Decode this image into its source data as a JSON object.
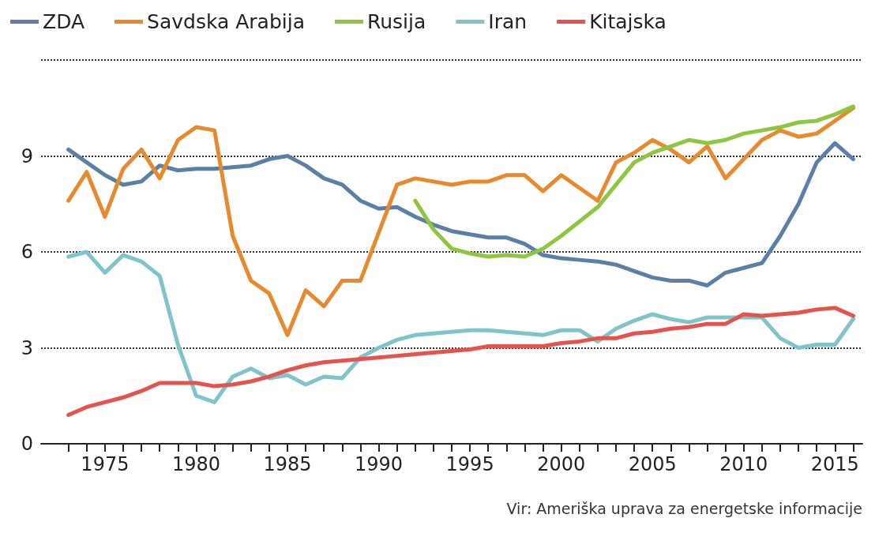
{
  "chart_data": {
    "type": "line",
    "x": [
      1973,
      1974,
      1975,
      1976,
      1977,
      1978,
      1979,
      1980,
      1981,
      1982,
      1983,
      1984,
      1985,
      1986,
      1987,
      1988,
      1989,
      1990,
      1991,
      1992,
      1993,
      1994,
      1995,
      1996,
      1997,
      1998,
      1999,
      2000,
      2001,
      2002,
      2003,
      2004,
      2005,
      2006,
      2007,
      2008,
      2009,
      2010,
      2011,
      2012,
      2013,
      2014,
      2015,
      2016
    ],
    "series": [
      {
        "name": "ZDA",
        "color": "#5b7fa6",
        "values": [
          9.2,
          8.8,
          8.4,
          8.1,
          8.2,
          8.7,
          8.55,
          8.6,
          8.6,
          8.65,
          8.7,
          8.9,
          9.0,
          8.7,
          8.3,
          8.1,
          7.6,
          7.35,
          7.4,
          7.1,
          6.85,
          6.65,
          6.55,
          6.45,
          6.45,
          6.25,
          5.9,
          5.8,
          5.75,
          5.7,
          5.6,
          5.4,
          5.2,
          5.1,
          5.1,
          4.95,
          5.35,
          5.5,
          5.65,
          6.5,
          7.5,
          8.8,
          9.4,
          8.9
        ]
      },
      {
        "name": "Savdska Arabija",
        "color": "#e8892b",
        "values": [
          7.6,
          8.5,
          7.1,
          8.6,
          9.2,
          8.3,
          9.5,
          9.9,
          9.8,
          6.5,
          5.1,
          4.7,
          3.4,
          4.8,
          4.3,
          5.1,
          5.1,
          6.6,
          8.1,
          8.3,
          8.2,
          8.1,
          8.2,
          8.2,
          8.4,
          8.4,
          7.9,
          8.4,
          8.0,
          7.6,
          8.8,
          9.1,
          9.5,
          9.2,
          8.8,
          9.3,
          8.3,
          8.9,
          9.5,
          9.8,
          9.6,
          9.7,
          10.1,
          10.5
        ]
      },
      {
        "name": "Rusija",
        "color": "#8dc63f",
        "x": [
          1992,
          1993,
          1994,
          1995,
          1996,
          1997,
          1998,
          1999,
          2000,
          2001,
          2002,
          2003,
          2004,
          2005,
          2006,
          2007,
          2008,
          2009,
          2010,
          2011,
          2012,
          2013,
          2014,
          2015,
          2016
        ],
        "values": [
          7.6,
          6.7,
          6.1,
          5.95,
          5.85,
          5.9,
          5.85,
          6.1,
          6.5,
          6.95,
          7.4,
          8.1,
          8.8,
          9.1,
          9.3,
          9.5,
          9.4,
          9.5,
          9.7,
          9.8,
          9.9,
          10.05,
          10.1,
          10.3,
          10.55
        ]
      },
      {
        "name": "Iran",
        "color": "#7fc4c9",
        "values": [
          5.85,
          6.0,
          5.35,
          5.9,
          5.7,
          5.25,
          3.1,
          1.5,
          1.3,
          2.1,
          2.35,
          2.05,
          2.15,
          1.85,
          2.1,
          2.05,
          2.7,
          3.0,
          3.25,
          3.4,
          3.45,
          3.5,
          3.55,
          3.55,
          3.5,
          3.45,
          3.4,
          3.55,
          3.55,
          3.2,
          3.6,
          3.85,
          4.05,
          3.9,
          3.8,
          3.95,
          3.95,
          3.95,
          3.95,
          3.3,
          3.0,
          3.1,
          3.1,
          3.9
        ]
      },
      {
        "name": "Kitajska",
        "color": "#e5534f",
        "values": [
          0.9,
          1.15,
          1.3,
          1.45,
          1.65,
          1.9,
          1.9,
          1.9,
          1.8,
          1.85,
          1.95,
          2.1,
          2.3,
          2.45,
          2.55,
          2.6,
          2.65,
          2.7,
          2.75,
          2.8,
          2.85,
          2.9,
          2.95,
          3.05,
          3.05,
          3.05,
          3.05,
          3.15,
          3.2,
          3.3,
          3.3,
          3.45,
          3.5,
          3.6,
          3.65,
          3.75,
          3.75,
          4.05,
          4.0,
          4.05,
          4.1,
          4.2,
          4.25,
          4.0
        ]
      }
    ],
    "xlim": [
      1971.5,
      2016.5
    ],
    "xticks": [
      {
        "value": 1973,
        "label": null
      },
      {
        "value": 1974,
        "label": null
      },
      1975,
      {
        "value": 1976,
        "label": null
      },
      {
        "value": 1977,
        "label": null
      },
      {
        "value": 1978,
        "label": null
      },
      {
        "value": 1979,
        "label": null
      },
      1980,
      {
        "value": 1981,
        "label": null
      },
      {
        "value": 1982,
        "label": null
      },
      {
        "value": 1983,
        "label": null
      },
      {
        "value": 1984,
        "label": null
      },
      1985,
      {
        "value": 1986,
        "label": null
      },
      {
        "value": 1987,
        "label": null
      },
      {
        "value": 1988,
        "label": null
      },
      {
        "value": 1989,
        "label": null
      },
      1990,
      {
        "value": 1991,
        "label": null
      },
      {
        "value": 1992,
        "label": null
      },
      {
        "value": 1993,
        "label": null
      },
      {
        "value": 1994,
        "label": null
      },
      1995,
      {
        "value": 1996,
        "label": null
      },
      {
        "value": 1997,
        "label": null
      },
      {
        "value": 1998,
        "label": null
      },
      {
        "value": 1999,
        "label": null
      },
      2000,
      {
        "value": 2001,
        "label": null
      },
      {
        "value": 2002,
        "label": null
      },
      {
        "value": 2003,
        "label": null
      },
      {
        "value": 2004,
        "label": null
      },
      2005,
      {
        "value": 2006,
        "label": null
      },
      {
        "value": 2007,
        "label": null
      },
      {
        "value": 2008,
        "label": null
      },
      {
        "value": 2009,
        "label": null
      },
      2010,
      {
        "value": 2011,
        "label": null
      },
      {
        "value": 2012,
        "label": null
      },
      {
        "value": 2013,
        "label": null
      },
      {
        "value": 2014,
        "label": null
      },
      2015,
      {
        "value": 2016,
        "label": null
      }
    ],
    "ylim": [
      0,
      12
    ],
    "yticks": [
      0,
      3,
      6,
      9,
      {
        "value": 12,
        "label": null
      }
    ],
    "grid": "y",
    "legend": "top",
    "marker": "none",
    "line_style": "solid",
    "annotations": [
      "Vir: Ameriška uprava za energetske informacije"
    ]
  }
}
